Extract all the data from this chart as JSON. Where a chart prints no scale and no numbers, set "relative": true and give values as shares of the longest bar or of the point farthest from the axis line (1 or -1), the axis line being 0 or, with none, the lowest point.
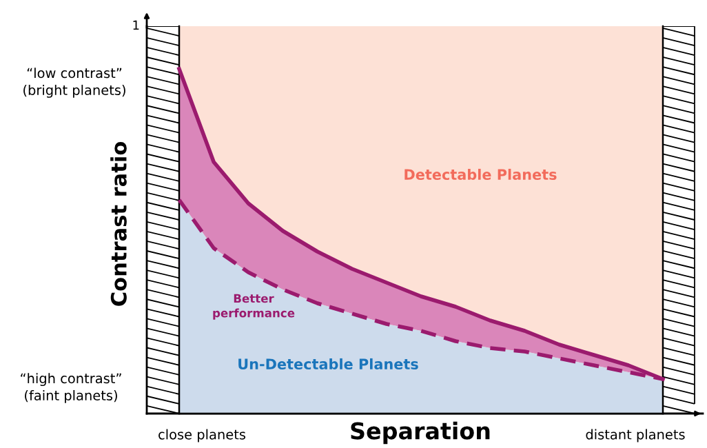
{
  "chart_data": {
    "type": "line",
    "xlabel": "Separation",
    "ylabel": "Contrast ratio",
    "categories": [
      null,
      null,
      null,
      null,
      null,
      null,
      null,
      null,
      null,
      null,
      null,
      null,
      null,
      null,
      null
    ],
    "series": [
      {
        "color": "#9b1b6e",
        "line_style": "solid",
        "values": [
          1,
          0.73,
          0.61,
          0.53,
          0.47,
          0.42,
          0.38,
          0.34,
          0.31,
          0.27,
          0.24,
          0.2,
          0.17,
          0.14,
          0.1
        ]
      },
      {
        "type": "area",
        "color": "#9b1b6e",
        "line_style": "dashed",
        "values": [
          0.62,
          0.48,
          0.41,
          0.36,
          0.32,
          0.29,
          0.26,
          0.24,
          0.21,
          0.19,
          0.18,
          0.16,
          0.14,
          0.12,
          0.1
        ]
      }
    ],
    "annotations": [
      "1",
      "“low contrast”\n(bright planets)",
      "“high contrast”\n(faint planets)",
      "close planets",
      "distant planets",
      "Detectable Planets",
      "Better\nperformance",
      "Un-Detectable Planets"
    ],
    "relative": true
  }
}
